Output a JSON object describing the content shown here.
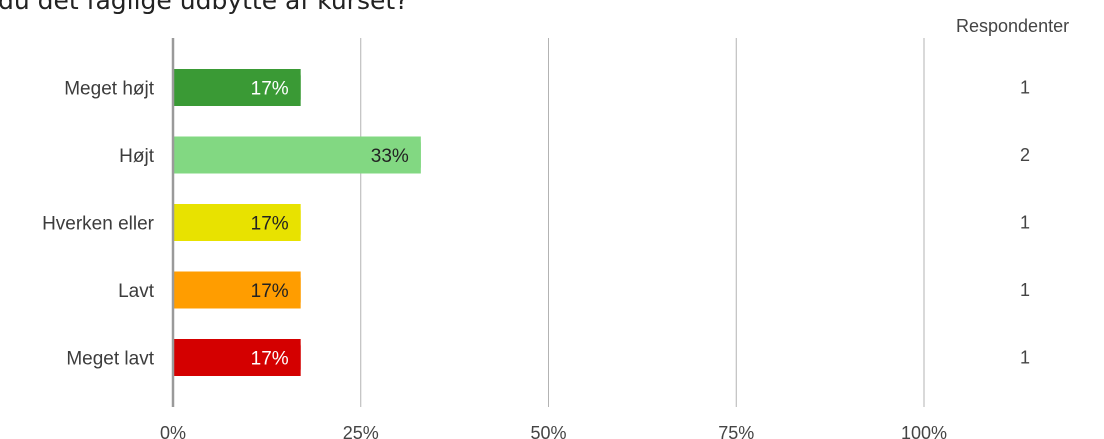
{
  "title": "du det faglige udbytte af kurset?",
  "respondents_header": "Respondenter",
  "chart_data": {
    "type": "bar",
    "orientation": "horizontal",
    "categories": [
      "Meget højt",
      "Højt",
      "Hverken eller",
      "Lavt",
      "Meget lavt"
    ],
    "values": [
      17,
      33,
      17,
      17,
      17
    ],
    "value_labels": [
      "17%",
      "33%",
      "17%",
      "17%",
      "17%"
    ],
    "respondents": [
      "1",
      "2",
      "1",
      "1",
      "1"
    ],
    "colors": [
      "#3a9a35",
      "#82d882",
      "#e8e200",
      "#ff9d00",
      "#d40000"
    ],
    "label_colors": [
      "#ffffff",
      "#222222",
      "#222222",
      "#222222",
      "#ffffff"
    ],
    "xlim": [
      0,
      100
    ],
    "x_ticks": [
      0,
      25,
      50,
      75,
      100
    ],
    "x_tick_labels": [
      "0%",
      "25%",
      "50%",
      "75%",
      "100%"
    ],
    "grid": true
  }
}
